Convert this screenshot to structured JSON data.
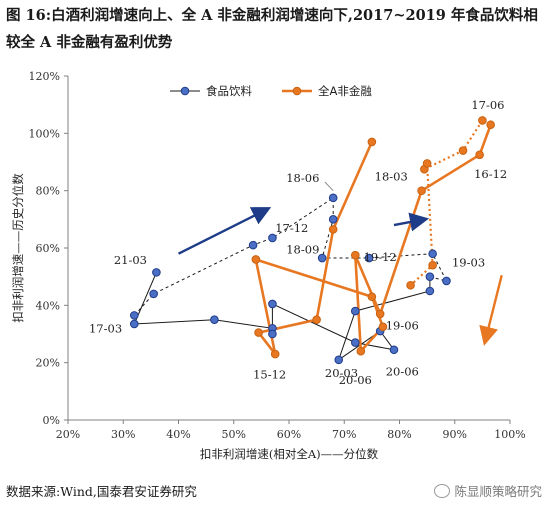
{
  "page": {
    "title": "图 16:白酒利润增速向上、全 A 非金融利润增速向下,2017~2019 年食品饮料相较全 A 非金融有盈利优势",
    "source": "数据来源:Wind,国泰君安证券研究",
    "watermark": "陈显顺策略研究",
    "watermark_icon": "wechat-icon"
  },
  "chart_data": {
    "type": "scatter",
    "xlabel": "扣非利润增速(相对全A)——分位数",
    "ylabel": "扣非利润增速——历史分位数",
    "xlim": [
      0.2,
      1.0
    ],
    "ylim": [
      0,
      1.2
    ],
    "x_ticks": [
      "20%",
      "30%",
      "40%",
      "50%",
      "60%",
      "70%",
      "80%",
      "90%",
      "100%"
    ],
    "y_ticks": [
      "0%",
      "20%",
      "40%",
      "60%",
      "80%",
      "100%",
      "120%"
    ],
    "grid": false,
    "legend_position": "top-center",
    "series": [
      {
        "name": "食品饮料",
        "color": "#1f3c88",
        "points": [
          {
            "x": 0.36,
            "y": 0.515
          },
          {
            "x": 0.32,
            "y": 0.335
          },
          {
            "x": 0.465,
            "y": 0.35
          },
          {
            "x": 0.57,
            "y": 0.32
          },
          {
            "x": 0.57,
            "y": 0.3
          },
          {
            "x": 0.57,
            "y": 0.405
          },
          {
            "x": 0.72,
            "y": 0.27
          },
          {
            "x": 0.79,
            "y": 0.245
          },
          {
            "x": 0.765,
            "y": 0.31
          },
          {
            "x": 0.69,
            "y": 0.21
          },
          {
            "x": 0.72,
            "y": 0.38
          },
          {
            "x": 0.855,
            "y": 0.45
          },
          {
            "x": 0.855,
            "y": 0.5
          },
          {
            "x": 0.885,
            "y": 0.485
          },
          {
            "x": 0.86,
            "y": 0.58
          },
          {
            "x": 0.745,
            "y": 0.565
          },
          {
            "x": 0.66,
            "y": 0.565
          },
          {
            "x": 0.68,
            "y": 0.7
          },
          {
            "x": 0.68,
            "y": 0.775
          },
          {
            "x": 0.57,
            "y": 0.635
          },
          {
            "x": 0.535,
            "y": 0.61
          },
          {
            "x": 0.355,
            "y": 0.44
          },
          {
            "x": 0.32,
            "y": 0.365
          }
        ]
      },
      {
        "name": "全A非金融",
        "color": "#e87722",
        "points": [
          {
            "x": 0.75,
            "y": 0.97
          },
          {
            "x": 0.68,
            "y": 0.665
          },
          {
            "x": 0.65,
            "y": 0.35
          },
          {
            "x": 0.545,
            "y": 0.305
          },
          {
            "x": 0.575,
            "y": 0.23
          },
          {
            "x": 0.54,
            "y": 0.56
          },
          {
            "x": 0.75,
            "y": 0.43
          },
          {
            "x": 0.77,
            "y": 0.325
          },
          {
            "x": 0.73,
            "y": 0.24
          },
          {
            "x": 0.72,
            "y": 0.575
          },
          {
            "x": 0.765,
            "y": 0.37
          },
          {
            "x": 0.84,
            "y": 0.8
          },
          {
            "x": 0.945,
            "y": 0.925
          },
          {
            "x": 0.965,
            "y": 1.03
          },
          {
            "x": 0.95,
            "y": 1.045
          },
          {
            "x": 0.915,
            "y": 0.94
          },
          {
            "x": 0.845,
            "y": 0.875
          },
          {
            "x": 0.85,
            "y": 0.895
          },
          {
            "x": 0.86,
            "y": 0.54
          },
          {
            "x": 0.82,
            "y": 0.47
          }
        ]
      }
    ],
    "annotations": [
      {
        "text": "21-03",
        "x": 0.283,
        "y": 0.545
      },
      {
        "text": "17-03",
        "x": 0.238,
        "y": 0.305
      },
      {
        "text": "15-12",
        "x": 0.535,
        "y": 0.145
      },
      {
        "text": "20-03",
        "x": 0.665,
        "y": 0.15
      },
      {
        "text": "20-06",
        "x": 0.69,
        "y": 0.125
      },
      {
        "text": "20-06",
        "x": 0.775,
        "y": 0.155
      },
      {
        "text": "19-06",
        "x": 0.775,
        "y": 0.315
      },
      {
        "text": "19-12",
        "x": 0.735,
        "y": 0.555
      },
      {
        "text": "18-09",
        "x": 0.595,
        "y": 0.58
      },
      {
        "text": "17-12",
        "x": 0.575,
        "y": 0.655
      },
      {
        "text": "18-06",
        "x": 0.595,
        "y": 0.83
      },
      {
        "text": "18-03",
        "x": 0.755,
        "y": 0.835
      },
      {
        "text": "16-12",
        "x": 0.935,
        "y": 0.845
      },
      {
        "text": "17-06",
        "x": 0.93,
        "y": 1.085
      },
      {
        "text": "19-03",
        "x": 0.895,
        "y": 0.535
      }
    ],
    "trend_arrows": [
      {
        "color": "#1f3c88",
        "from": [
          0.4,
          0.58
        ],
        "to": [
          0.56,
          0.735
        ]
      },
      {
        "color": "#1f3c88",
        "from": [
          0.79,
          0.68
        ],
        "to": [
          0.845,
          0.7
        ]
      },
      {
        "color": "#e87722",
        "from": [
          0.985,
          0.505
        ],
        "to": [
          0.955,
          0.275
        ]
      }
    ]
  }
}
